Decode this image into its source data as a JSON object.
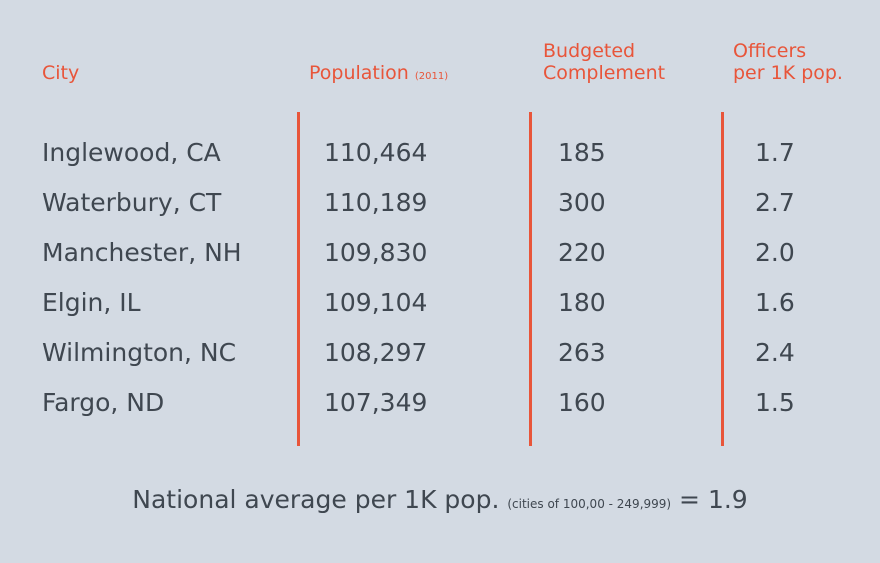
{
  "chart_data": {
    "type": "table",
    "headers": {
      "city": "City",
      "population": "Population",
      "population_note": "(2011)",
      "budget_line1": "Budgeted",
      "budget_line2": "Complement",
      "officers_line1": "Officers",
      "officers_line2": "per 1K pop."
    },
    "rows": [
      {
        "city": "Inglewood, CA",
        "population": "110,464",
        "budgeted": "185",
        "officers": "1.7"
      },
      {
        "city": "Waterbury, CT",
        "population": "110,189",
        "budgeted": "300",
        "officers": "2.7"
      },
      {
        "city": "Manchester, NH",
        "population": "109,830",
        "budgeted": "220",
        "officers": "2.0"
      },
      {
        "city": "Elgin, IL",
        "population": "109,104",
        "budgeted": "180",
        "officers": "1.6"
      },
      {
        "city": "Wilmington, NC",
        "population": "108,297",
        "budgeted": "263",
        "officers": "2.4"
      },
      {
        "city": "Fargo, ND",
        "population": "107,349",
        "budgeted": "160",
        "officers": "1.5"
      }
    ],
    "footnote": {
      "label": "National average per 1K pop.",
      "note": "(cities of 100,00 - 249,999)",
      "value": "= 1.9"
    },
    "colors": {
      "accent": "#e8553a",
      "background": "#d3dae3",
      "text": "#3f4750"
    }
  }
}
